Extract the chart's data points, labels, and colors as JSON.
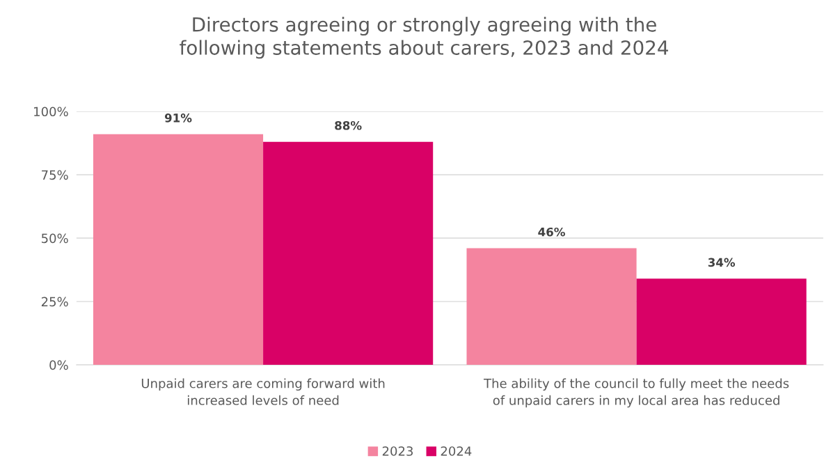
{
  "chart_data": {
    "type": "bar",
    "title": "Directors agreeing or strongly agreeing with the\nfollowing statements about carers, 2023 and 2024",
    "categories": [
      "Unpaid carers are coming forward with\nincreased levels of need",
      "The ability of the council to fully meet the needs\nof unpaid carers in my local area has reduced"
    ],
    "series": [
      {
        "name": "2023",
        "color": "#f4849f",
        "values": [
          91,
          46
        ],
        "value_labels": [
          "91%",
          "46%"
        ]
      },
      {
        "name": "2024",
        "color": "#d90166",
        "values": [
          88,
          34
        ],
        "value_labels": [
          "88%",
          "34%"
        ]
      }
    ],
    "ylim": [
      0,
      100
    ],
    "yticks": [
      {
        "value": 0,
        "label": "0%"
      },
      {
        "value": 25,
        "label": "25%"
      },
      {
        "value": 50,
        "label": "50%"
      },
      {
        "value": 75,
        "label": "75%"
      },
      {
        "value": 100,
        "label": "100%"
      }
    ],
    "grid": "y",
    "legend": "bottom"
  }
}
